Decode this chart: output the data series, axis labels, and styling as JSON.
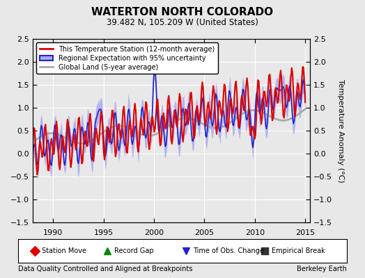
{
  "title": "WATERTON NORTH COLORADO",
  "subtitle": "39.482 N, 105.209 W (United States)",
  "xlabel_left": "Data Quality Controlled and Aligned at Breakpoints",
  "xlabel_right": "Berkeley Earth",
  "ylabel": "Temperature Anomaly (°C)",
  "xlim": [
    1988.0,
    2015.5
  ],
  "ylim": [
    -1.5,
    2.5
  ],
  "yticks": [
    -1.5,
    -1.0,
    -0.5,
    0.0,
    0.5,
    1.0,
    1.5,
    2.0,
    2.5
  ],
  "xticks": [
    1990,
    1995,
    2000,
    2005,
    2010,
    2015
  ],
  "bg_color": "#e8e8e8",
  "plot_bg_color": "#e8e8e8",
  "grid_color": "#ffffff",
  "red_color": "#dd0000",
  "blue_color": "#2222cc",
  "blue_fill_color": "#aaaaee",
  "gray_color": "#aaaaaa",
  "legend_entries": [
    "This Temperature Station (12-month average)",
    "Regional Expectation with 95% uncertainty",
    "Global Land (5-year average)"
  ],
  "bottom_legend": [
    {
      "marker": "D",
      "color": "#dd0000",
      "label": "Station Move"
    },
    {
      "marker": "^",
      "color": "#008800",
      "label": "Record Gap"
    },
    {
      "marker": "v",
      "color": "#2222cc",
      "label": "Time of Obs. Change"
    },
    {
      "marker": "s",
      "color": "#333333",
      "label": "Empirical Break"
    }
  ]
}
